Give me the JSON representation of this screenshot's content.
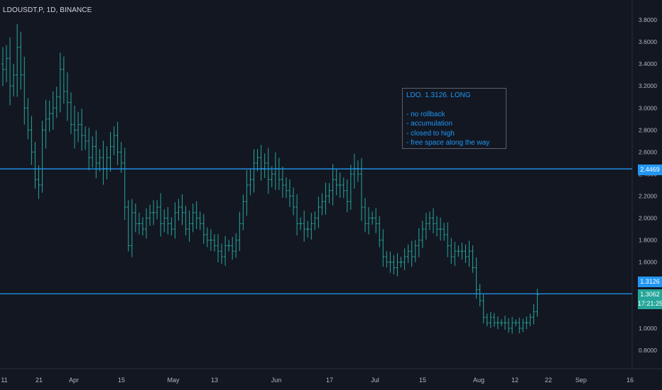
{
  "symbol_title": "LDOUSDT.P, 1D, BINANCE",
  "note": {
    "title": "LDO. 1.3126. LONG",
    "lines": [
      "- no rollback",
      "- accumulation",
      "- closed to high",
      "- free space along the way"
    ]
  },
  "price_tags": {
    "resistance": "2.4469",
    "entry": "1.3126",
    "last_price": "1.3062",
    "countdown": "17:21:25"
  },
  "colors": {
    "background": "#131722",
    "bar": "#26a69a",
    "level_line": "#2196f3",
    "axis_text": "#b2b5be"
  },
  "chart_data": {
    "type": "ohlc",
    "title": "LDOUSDT.P, 1D, BINANCE",
    "ylim": [
      0.7,
      3.9
    ],
    "y_ticks": [
      "0.8000",
      "1.0000",
      "1.2000",
      "1.4000",
      "1.6000",
      "1.8000",
      "2.0000",
      "2.2000",
      "2.4000",
      "2.6000",
      "2.8000",
      "3.0000",
      "3.2000",
      "3.4000",
      "3.6000",
      "3.8000"
    ],
    "x_ticks": [
      "11",
      "21",
      "Apr",
      "15",
      "May",
      "13",
      "Jun",
      "17",
      "Jul",
      "15",
      "Aug",
      "12",
      "22",
      "Sep",
      "16"
    ],
    "horizontal_levels": [
      2.4469,
      1.3126
    ],
    "closes": [
      3.35,
      3.45,
      3.2,
      3.3,
      3.55,
      3.3,
      3.0,
      2.8,
      2.6,
      2.35,
      2.3,
      2.8,
      2.9,
      2.95,
      3.0,
      3.1,
      3.35,
      3.15,
      3.05,
      2.85,
      2.8,
      2.85,
      2.75,
      2.7,
      2.55,
      2.65,
      2.5,
      2.55,
      2.45,
      2.55,
      2.65,
      2.75,
      2.6,
      2.5,
      2.1,
      1.75,
      2.05,
      1.95,
      1.95,
      1.9,
      2.0,
      2.05,
      2.05,
      2.1,
      1.95,
      2.0,
      1.95,
      1.9,
      2.05,
      2.1,
      2.05,
      1.9,
      1.95,
      2.05,
      2.0,
      1.95,
      1.85,
      1.8,
      1.8,
      1.75,
      1.7,
      1.65,
      1.75,
      1.75,
      1.7,
      1.8,
      1.95,
      2.15,
      2.3,
      2.35,
      2.5,
      2.55,
      2.45,
      2.5,
      2.35,
      2.4,
      2.45,
      2.35,
      2.3,
      2.25,
      2.2,
      2.1,
      1.95,
      1.95,
      1.9,
      1.9,
      1.95,
      2.0,
      2.1,
      2.15,
      2.2,
      2.25,
      2.35,
      2.3,
      2.3,
      2.25,
      2.15,
      2.4,
      2.45,
      2.4,
      2.1,
      1.95,
      2.0,
      2.0,
      1.95,
      1.8,
      1.65,
      1.6,
      1.6,
      1.55,
      1.6,
      1.6,
      1.65,
      1.7,
      1.65,
      1.75,
      1.8,
      1.9,
      1.95,
      2.0,
      1.95,
      1.9,
      1.9,
      1.85,
      1.75,
      1.65,
      1.7,
      1.7,
      1.7,
      1.65,
      1.7,
      1.55,
      1.35,
      1.25,
      1.1,
      1.05,
      1.1,
      1.05,
      1.05,
      1.05,
      1.05,
      1.0,
      1.05,
      1.05,
      1.0,
      1.05,
      1.05,
      1.1,
      1.15,
      1.3062
    ]
  }
}
